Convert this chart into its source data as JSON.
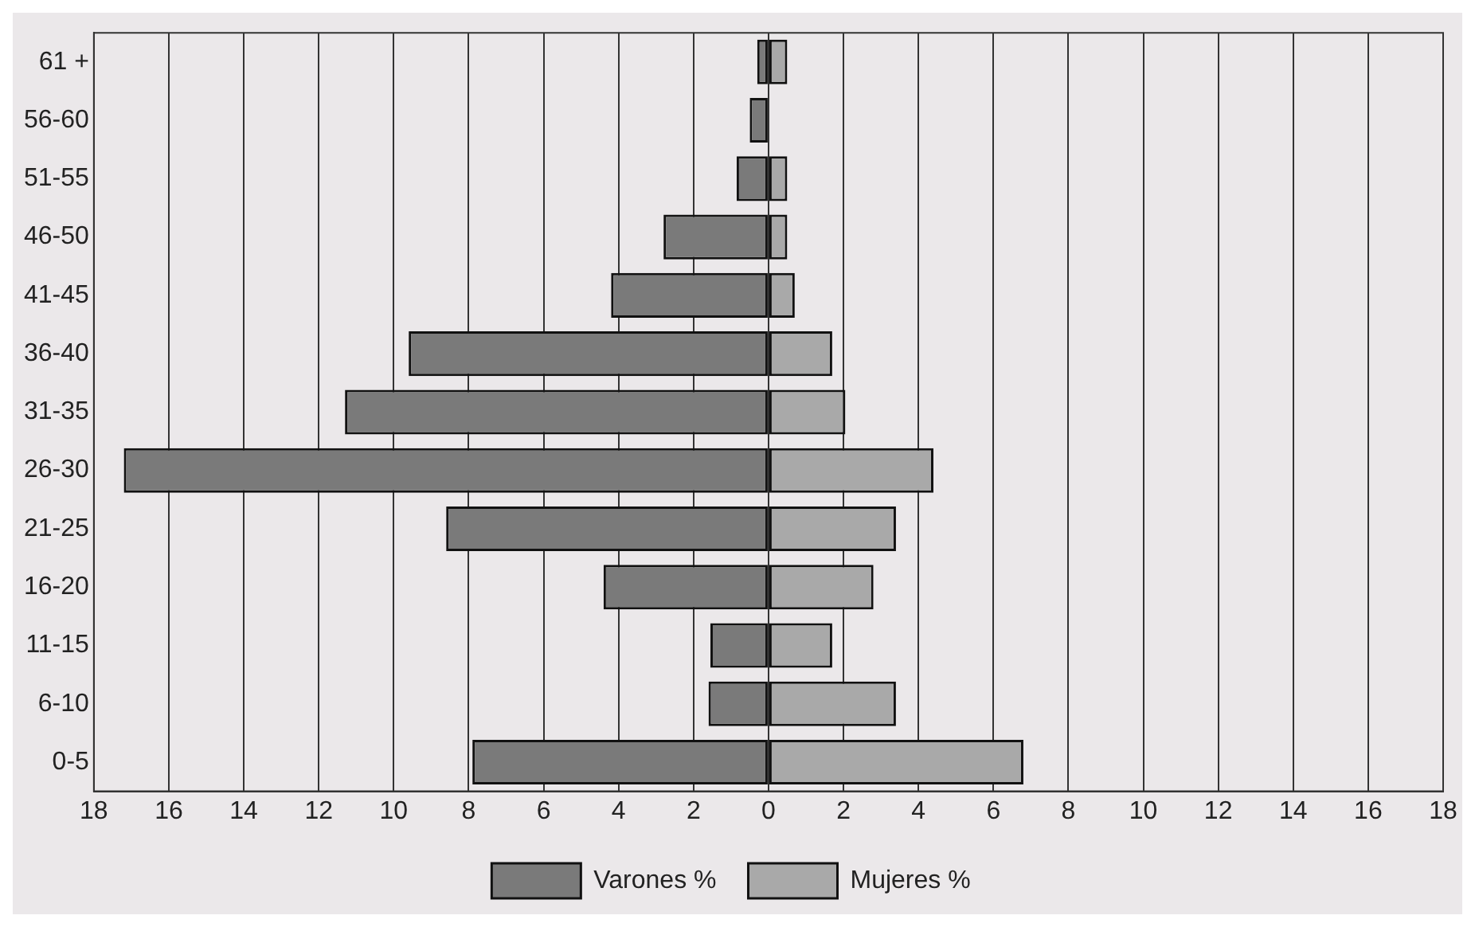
{
  "chart_data": {
    "type": "bar",
    "orientation": "horizontal",
    "stacked": true,
    "categories": [
      "61 +",
      "56-60",
      "51-55",
      "46-50",
      "41-45",
      "36-40",
      "31-35",
      "26-30",
      "21-25",
      "16-20",
      "11-15",
      "6-10",
      "0-5"
    ],
    "series": [
      {
        "name": "Varones %",
        "color": "#7a7a7a",
        "values": [
          -0.3,
          -0.5,
          -0.85,
          -2.8,
          -4.2,
          -9.6,
          -11.3,
          -17.2,
          -8.6,
          -4.4,
          -1.55,
          -1.6,
          -7.9
        ]
      },
      {
        "name": "Mujeres %",
        "color": "#a9a9a9",
        "values": [
          0.5,
          0,
          0.5,
          0.5,
          0.7,
          1.7,
          2.05,
          4.4,
          3.4,
          2.8,
          1.7,
          3.4,
          6.8
        ]
      }
    ],
    "xlim": [
      -18,
      18
    ],
    "xticks": [
      {
        "value": -18,
        "label": "18"
      },
      {
        "value": -16,
        "label": "16"
      },
      {
        "value": -14,
        "label": "14"
      },
      {
        "value": -12,
        "label": "12"
      },
      {
        "value": -10,
        "label": "10"
      },
      {
        "value": -8,
        "label": "8"
      },
      {
        "value": -6,
        "label": "6"
      },
      {
        "value": -4,
        "label": "4"
      },
      {
        "value": -2,
        "label": "2"
      },
      0,
      2,
      4,
      6,
      8,
      10,
      12,
      14,
      16,
      18
    ],
    "grid": "x",
    "legend": "bottom"
  }
}
